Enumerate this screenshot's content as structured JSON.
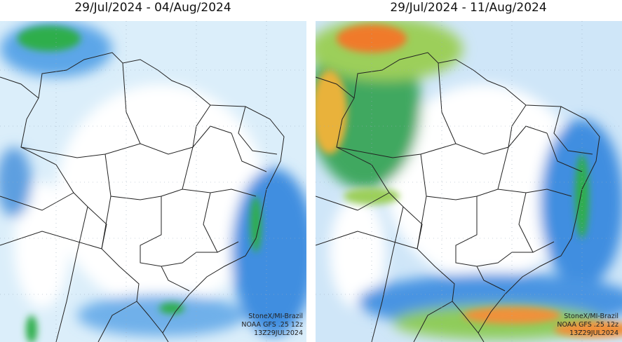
{
  "panels": [
    {
      "title": "29/Jul/2024 - 04/Aug/2024",
      "credits": [
        "StoneX/MI-Brazil",
        "NOAA GFS .25 12z",
        "13Z29JUL2024"
      ]
    },
    {
      "title": "29/Jul/2024 - 11/Aug/2024",
      "credits": [
        "StoneX/MI-Brazil",
        "NOAA GFS .25 12z",
        "13Z29JUL2024"
      ]
    }
  ]
}
